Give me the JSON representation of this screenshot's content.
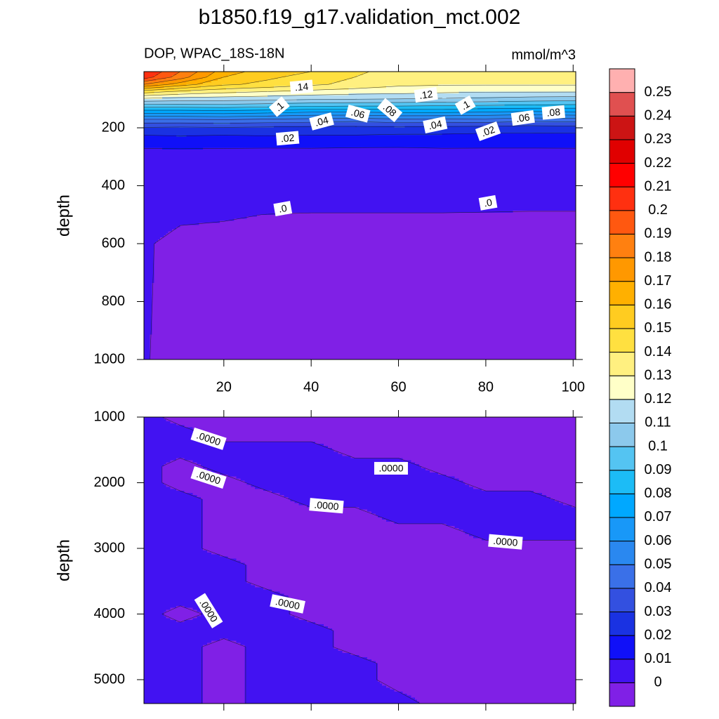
{
  "chart_data": [
    {
      "type": "contour",
      "title": "b1850.f19_g17.validation_mct.002",
      "subtitle": "DOP, WPAC_18S-18N",
      "units": "mmol/m^3",
      "ylabel": "depth",
      "x": [
        1.7,
        10,
        20,
        30,
        40,
        50,
        60,
        70,
        80,
        90,
        100.6
      ],
      "y": [
        6,
        25,
        50,
        75,
        100,
        125,
        150,
        175,
        200,
        225,
        250,
        275,
        300,
        400,
        500,
        600,
        800,
        1000
      ],
      "z": [
        [
          0.21,
          0.19,
          0.165,
          0.155,
          0.15,
          0.142,
          0.136,
          0.135,
          0.136,
          0.137,
          0.135
        ],
        [
          0.205,
          0.185,
          0.16,
          0.152,
          0.146,
          0.14,
          0.134,
          0.132,
          0.133,
          0.133,
          0.132
        ],
        [
          0.18,
          0.165,
          0.152,
          0.147,
          0.142,
          0.137,
          0.132,
          0.131,
          0.131,
          0.131,
          0.131
        ],
        [
          0.145,
          0.138,
          0.133,
          0.13,
          0.127,
          0.125,
          0.124,
          0.122,
          0.121,
          0.121,
          0.121
        ],
        [
          0.118,
          0.116,
          0.115,
          0.114,
          0.112,
          0.111,
          0.11,
          0.109,
          0.108,
          0.106,
          0.105
        ],
        [
          0.094,
          0.094,
          0.095,
          0.093,
          0.091,
          0.09,
          0.09,
          0.089,
          0.088,
          0.087,
          0.086
        ],
        [
          0.07,
          0.07,
          0.071,
          0.069,
          0.066,
          0.066,
          0.068,
          0.068,
          0.066,
          0.064,
          0.066
        ],
        [
          0.046,
          0.046,
          0.047,
          0.045,
          0.044,
          0.042,
          0.045,
          0.044,
          0.045,
          0.042,
          0.043
        ],
        [
          0.029,
          0.028,
          0.029,
          0.028,
          0.027,
          0.027,
          0.028,
          0.027,
          0.026,
          0.025,
          0.026
        ],
        [
          0.02,
          0.021,
          0.02,
          0.021,
          0.02,
          0.02,
          0.019,
          0.019,
          0.018,
          0.018,
          0.018
        ],
        [
          0.013,
          0.014,
          0.013,
          0.013,
          0.013,
          0.012,
          0.012,
          0.013,
          0.012,
          0.012,
          0.012
        ],
        [
          0.0095,
          0.0095,
          0.0095,
          0.0093,
          0.0094,
          0.0093,
          0.0092,
          0.0094,
          0.0095,
          0.0095,
          0.0096
        ],
        [
          0.008,
          0.0075,
          0.0075,
          0.0072,
          0.0072,
          0.007,
          0.007,
          0.007,
          0.007,
          0.007,
          0.007
        ],
        [
          0.005,
          0.004,
          0.0035,
          0.003,
          0.003,
          0.003,
          0.003,
          0.003,
          0.003,
          0.003,
          0.003
        ],
        [
          0.0015,
          0.0006,
          0.0003,
          -5e-05,
          -0.0002,
          -0.0002,
          -0.0002,
          -0.0002,
          -0.0003,
          -0.0004,
          -0.0004
        ],
        [
          0.0004,
          -0.001,
          -0.001,
          -0.001,
          -0.001,
          -0.001,
          -0.001,
          -0.001,
          -0.001,
          -0.001,
          -0.001
        ],
        [
          0.0003,
          -0.001,
          -0.001,
          -0.001,
          -0.001,
          -0.001,
          -0.001,
          -0.001,
          -0.001,
          -0.001,
          -0.001
        ],
        [
          0.0002,
          -0.001,
          -0.001,
          -0.001,
          -0.001,
          -0.001,
          -0.001,
          -0.001,
          -0.001,
          -0.001,
          -0.001
        ]
      ],
      "xlim": [
        1.7,
        100.6
      ],
      "ylim": [
        6,
        1000
      ],
      "y_reversed": true,
      "xticks": [
        20,
        40,
        60,
        80,
        100
      ],
      "yticks": [
        200,
        400,
        600,
        800,
        1000
      ],
      "xtick_labels": true,
      "levels": [
        0,
        0.01,
        0.02,
        0.03,
        0.04,
        0.05,
        0.06,
        0.07,
        0.08,
        0.09,
        0.1,
        0.11,
        0.12,
        0.13,
        0.14,
        0.15,
        0.16,
        0.17,
        0.18,
        0.19,
        0.2,
        0.21,
        0.22,
        0.23,
        0.24,
        0.25
      ],
      "colors": [
        "#8020e6",
        "#4212f2",
        "#1010f8",
        "#1a32e2",
        "#3350e0",
        "#3a70e8",
        "#2a88f0",
        "#1898f8",
        "#00a8ff",
        "#1cbcf6",
        "#54c4f2",
        "#8cc9ec",
        "#b2dcf2",
        "#ffffc8",
        "#fff080",
        "#ffe040",
        "#ffcc20",
        "#ffb000",
        "#ff9800",
        "#ff8010",
        "#ff5810",
        "#ff3010",
        "#ff0000",
        "#e00000",
        "#cc1414",
        "#e05050",
        "#ffb0b0"
      ],
      "contour_labels": [
        {
          "text": ".14",
          "x": 37.8,
          "y": 59
        },
        {
          "text": ".1",
          "x": 32.7,
          "y": 127
        },
        {
          "text": ".04",
          "x": 42.4,
          "y": 178
        },
        {
          "text": ".06",
          "x": 50.7,
          "y": 151
        },
        {
          "text": ".08",
          "x": 58,
          "y": 139
        },
        {
          "text": ".12",
          "x": 66.3,
          "y": 86
        },
        {
          "text": ".1",
          "x": 75.3,
          "y": 122
        },
        {
          "text": ".06",
          "x": 88.5,
          "y": 166
        },
        {
          "text": ".08",
          "x": 95.5,
          "y": 147
        },
        {
          "text": ".04",
          "x": 68.4,
          "y": 190
        },
        {
          "text": ".02",
          "x": 34.6,
          "y": 236
        },
        {
          "text": ".02",
          "x": 80.5,
          "y": 212
        },
        {
          "text": ".0",
          "x": 33.5,
          "y": 479
        },
        {
          "text": ".0",
          "x": 80.5,
          "y": 459
        }
      ]
    },
    {
      "type": "contour",
      "ylabel": "depth",
      "x": [
        1.7,
        10,
        20,
        30,
        40,
        50,
        60,
        70,
        80,
        90,
        100.6
      ],
      "y": [
        1000,
        1250,
        1500,
        1750,
        2000,
        2250,
        2500,
        2750,
        3000,
        3250,
        3500,
        3750,
        4000,
        4250,
        4500,
        4750,
        5000,
        5364
      ],
      "z": [
        [
          0.0005,
          -0.0005,
          -0.0005,
          -0.0005,
          -0.0005,
          -0.0005,
          -0.0005,
          -0.0005,
          -0.0005,
          -0.0005,
          -0.0005
        ],
        [
          0.0005,
          0.0005,
          -0.0005,
          -0.0005,
          -0.0005,
          -0.0005,
          -0.0005,
          -0.0005,
          -0.0005,
          -0.0005,
          -0.0005
        ],
        [
          0.0005,
          0.0005,
          0.0005,
          0.0005,
          0.0005,
          -0.0005,
          -0.0005,
          -0.0005,
          -0.0005,
          -0.0005,
          -0.0005
        ],
        [
          0.0005,
          -0.0005,
          0.0005,
          0.0005,
          0.0005,
          0.0005,
          0.0005,
          -0.0005,
          -0.0005,
          -0.0005,
          -0.0005
        ],
        [
          0.0005,
          -0.0005,
          -0.0005,
          0.0005,
          0.0005,
          0.0005,
          0.0005,
          0.0005,
          -0.0005,
          -0.0005,
          -0.0005
        ],
        [
          0.0005,
          0.0005,
          -0.0005,
          -0.0005,
          0.0005,
          0.0005,
          0.0005,
          0.0005,
          0.0005,
          0.0005,
          -0.0005
        ],
        [
          0.0005,
          0.0005,
          -0.0005,
          -0.0005,
          -0.0005,
          -0.0005,
          0.0005,
          0.0005,
          0.0005,
          0.0005,
          0.0005
        ],
        [
          0.0005,
          0.0005,
          -0.0005,
          -0.0005,
          -0.0005,
          -0.0005,
          -0.0005,
          -0.0005,
          0.0005,
          0.0005,
          0.0005
        ],
        [
          0.0005,
          0.0005,
          -0.0005,
          -0.0005,
          -0.0005,
          -0.0005,
          -0.0005,
          -0.0005,
          -0.0005,
          -0.0005,
          -0.0005
        ],
        [
          0.0005,
          0.0005,
          0.0005,
          -0.0005,
          -0.0005,
          -0.0005,
          -0.0005,
          -0.0005,
          -0.0005,
          -0.0005,
          -0.0005
        ],
        [
          0.0005,
          0.0005,
          0.0005,
          -0.0005,
          -0.0005,
          -0.0005,
          -0.0005,
          -0.0005,
          -0.0005,
          -0.0005,
          -0.0005
        ],
        [
          0.0005,
          0.0005,
          0.0005,
          0.0005,
          -0.0005,
          -0.0005,
          -0.0005,
          -0.0005,
          -0.0005,
          -0.0005,
          -0.0005
        ],
        [
          0.0005,
          -0.0005,
          0.0005,
          0.0005,
          -0.0005,
          -0.0005,
          -0.0005,
          -0.0005,
          -0.0005,
          -0.0005,
          -0.0005
        ],
        [
          0.0005,
          0.0005,
          0.0005,
          0.0005,
          0.0005,
          -0.0005,
          -0.0005,
          -0.0005,
          -0.0005,
          -0.0005,
          -0.0005
        ],
        [
          0.0005,
          0.0005,
          -0.0005,
          0.0005,
          0.0005,
          -0.0005,
          -0.0005,
          -0.0005,
          -0.0005,
          -0.0005,
          -0.0005
        ],
        [
          0.0005,
          0.0005,
          -0.0005,
          0.0005,
          0.0005,
          0.0005,
          -0.0005,
          -0.0005,
          -0.0005,
          -0.0005,
          -0.0005
        ],
        [
          0.0005,
          0.0005,
          -0.0005,
          0.0005,
          0.0005,
          0.0005,
          -0.0005,
          -0.0005,
          -0.0005,
          -0.0005,
          -0.0005
        ],
        [
          0.0005,
          0.0005,
          -0.0005,
          0.0005,
          0.0005,
          0.0005,
          0.0005,
          -0.0005,
          -0.0005,
          -0.0005,
          -0.0005
        ]
      ],
      "xlim": [
        1.7,
        100.6
      ],
      "ylim": [
        1000,
        5364
      ],
      "y_reversed": true,
      "xticks": [
        20,
        40,
        60,
        80,
        100
      ],
      "yticks": [
        1000,
        2000,
        3000,
        4000,
        5000
      ],
      "xtick_labels": false,
      "contour_labels": [
        {
          "text": ".0000",
          "x": 16.5,
          "y": 1330
        },
        {
          "text": ".0000",
          "x": 16.5,
          "y": 1920
        },
        {
          "text": ".0000",
          "x": 58.3,
          "y": 1780
        },
        {
          "text": ".0000",
          "x": 43.5,
          "y": 2350
        },
        {
          "text": ".0000",
          "x": 84.5,
          "y": 2900
        },
        {
          "text": ".0000",
          "x": 16.5,
          "y": 3950
        },
        {
          "text": ".0000",
          "x": 34.6,
          "y": 3845
        }
      ]
    }
  ]
}
